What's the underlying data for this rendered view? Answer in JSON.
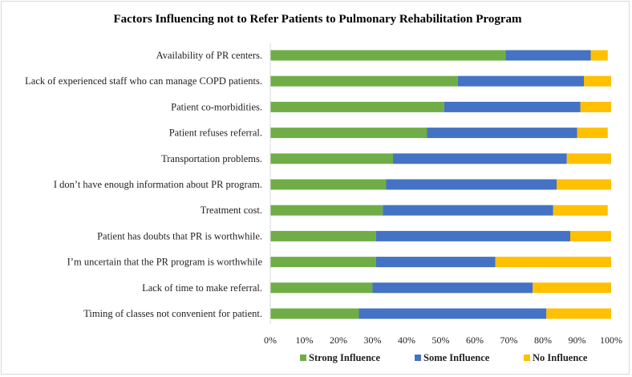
{
  "chart_data": {
    "type": "bar",
    "orientation": "horizontal",
    "stacked": true,
    "title": "Factors Influencing not to Refer Patients to Pulmonary Rehabilitation Program",
    "xlabel": "",
    "ylabel": "",
    "xlim": [
      0,
      100
    ],
    "x_ticks": [
      "0%",
      "10%",
      "20%",
      "30%",
      "40%",
      "50%",
      "60%",
      "70%",
      "80%",
      "90%",
      "100%"
    ],
    "categories": [
      "Availability of PR centers.",
      "Lack of experienced staff who can manage COPD patients.",
      "Patient co-morbidities.",
      "Patient refuses referral.",
      "Transportation problems.",
      "I don’t have enough information about PR program.",
      "Treatment cost.",
      "Patient has doubts that PR is worthwhile.",
      "I’m uncertain that the PR program is worthwhile",
      "Lack of time to make referral.",
      "Timing of classes not convenient for patient."
    ],
    "series": [
      {
        "name": "Strong Influence",
        "color": "#70ad47",
        "values": [
          69,
          55,
          51,
          46,
          36,
          34,
          33,
          31,
          31,
          30,
          26
        ]
      },
      {
        "name": "Some Influence",
        "color": "#4472c4",
        "values": [
          25,
          37,
          40,
          44,
          51,
          50,
          50,
          57,
          35,
          47,
          55
        ]
      },
      {
        "name": "No Influence",
        "color": "#ffc000",
        "values": [
          5,
          8,
          9,
          9,
          13,
          16,
          16,
          12,
          34,
          23,
          19
        ]
      }
    ],
    "legend_position": "bottom",
    "grid": false
  }
}
